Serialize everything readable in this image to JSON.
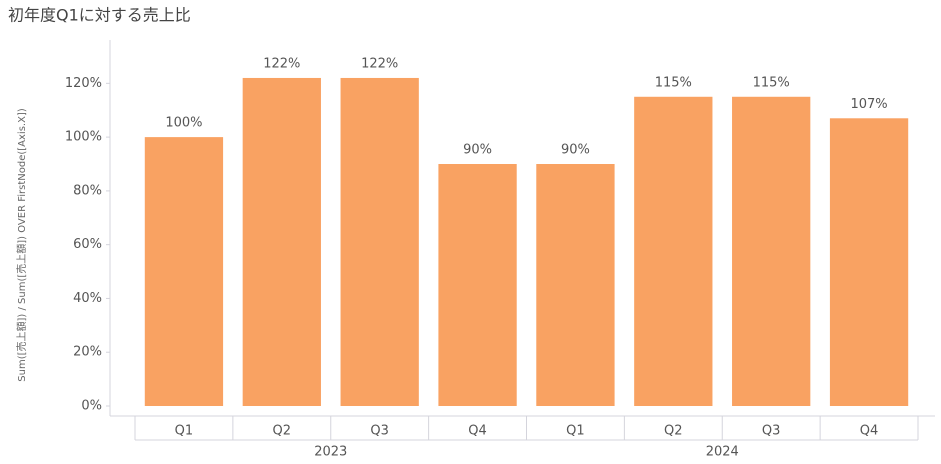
{
  "chart_data": {
    "type": "bar",
    "title": "初年度Q1に対する売上比",
    "y_label": "Sum([売上額]) / Sum([売上額]) OVER FirstNode([Axis.X])",
    "groups": [
      {
        "name": "2023",
        "categories": [
          "Q1",
          "Q2",
          "Q3",
          "Q4"
        ]
      },
      {
        "name": "2024",
        "categories": [
          "Q1",
          "Q2",
          "Q3",
          "Q4"
        ]
      }
    ],
    "values": [
      100,
      122,
      122,
      90,
      90,
      115,
      115,
      107
    ],
    "value_labels": [
      "100%",
      "122%",
      "122%",
      "90%",
      "90%",
      "115%",
      "115%",
      "107%"
    ],
    "color": "#f9a262",
    "ylim": [
      0,
      135
    ],
    "yticks": [
      {
        "value": 0,
        "label": "0%"
      },
      {
        "value": 20,
        "label": "20%"
      },
      {
        "value": 40,
        "label": "40%"
      },
      {
        "value": 60,
        "label": "60%"
      },
      {
        "value": 80,
        "label": "80%"
      },
      {
        "value": 100,
        "label": "100%"
      },
      {
        "value": 120,
        "label": "120%"
      }
    ],
    "grid": false
  }
}
